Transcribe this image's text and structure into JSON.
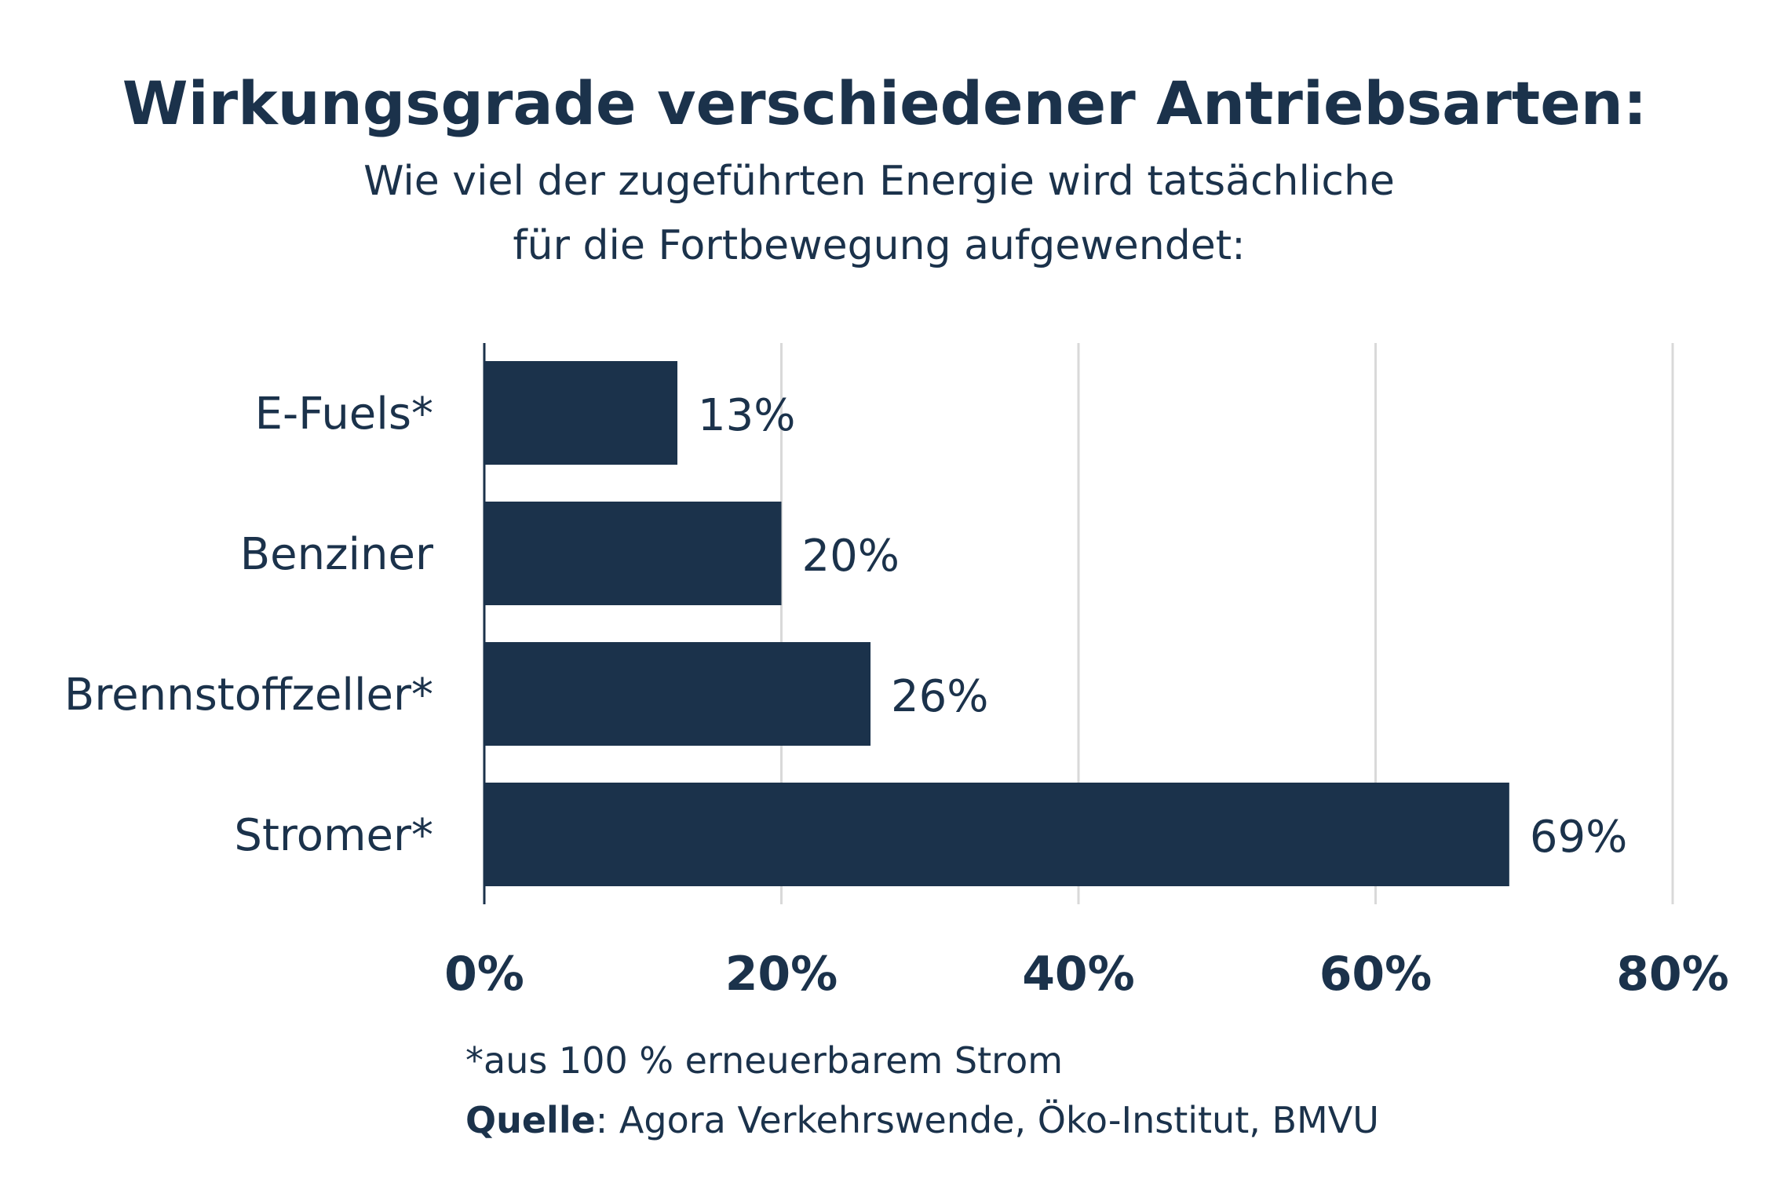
{
  "chart_data": {
    "type": "bar",
    "orientation": "horizontal",
    "title": "Wirkungsgrade verschiedener Antriebsarten:",
    "subtitle_lines": [
      "Wie viel der zugeführten Energie wird tatsächliche",
      "für die Fortbewegung aufgewendet:"
    ],
    "categories": [
      "E-Fuels*",
      "Benziner",
      "Brennstoffzeller*",
      "Stromer*"
    ],
    "values": [
      13,
      20,
      26,
      69
    ],
    "value_labels": [
      "13%",
      "20%",
      "26%",
      "69%"
    ],
    "xlim": [
      0,
      80
    ],
    "xticks": [
      0,
      20,
      40,
      60,
      80
    ],
    "xtick_labels": [
      "0%",
      "20%",
      "40%",
      "60%",
      "80%"
    ],
    "xlabel": "",
    "ylabel": "",
    "grid": true,
    "bar_color": "#1b324b",
    "grid_color": "#d9d9d9",
    "footnote": "*aus 100 % erneuerbarem Strom",
    "source_label": "Quelle",
    "source_text": ": Agora Verkehrswende, Öko-Institut, BMVU"
  }
}
